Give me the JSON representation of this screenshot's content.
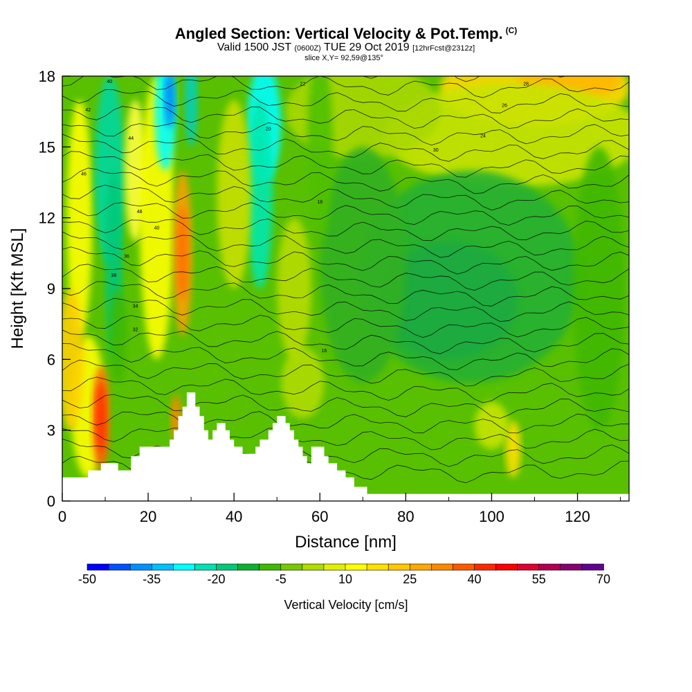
{
  "header": {
    "title": "Angled Section: Vertical Velocity & Pot.Temp.",
    "title_units": "(C)",
    "valid_prefix": "Valid 1500 JST",
    "valid_utc": "(0600Z)",
    "valid_date": "TUE 29 Oct 2019",
    "forecast": "[12hrFcst@2312z]",
    "slice": "slice X,Y= 92,59@135°"
  },
  "chart_data": {
    "type": "heatmap",
    "xlabel": "Distance [nm]",
    "ylabel": "Height [Kft MSL]",
    "xlim": [
      0,
      132
    ],
    "ylim": [
      0,
      18
    ],
    "x_ticks": [
      0,
      20,
      40,
      60,
      80,
      100,
      120
    ],
    "y_ticks": [
      0,
      3,
      6,
      9,
      12,
      15,
      18
    ],
    "colorbar": {
      "label": "Vertical Velocity [cm/s]",
      "tick_labels": [
        "-50",
        "-35",
        "-20",
        "-5",
        "10",
        "25",
        "40",
        "55",
        "70"
      ],
      "colors": [
        "#0000ff",
        "#0050ff",
        "#0090ff",
        "#00c0ff",
        "#00ffff",
        "#00e0b0",
        "#00c878",
        "#10b030",
        "#40b800",
        "#78c800",
        "#b0dc00",
        "#e0f000",
        "#ffff00",
        "#ffe000",
        "#ffc800",
        "#ffa800",
        "#ff8800",
        "#ff5a00",
        "#ff2800",
        "#ff0000",
        "#dd0030",
        "#b00050",
        "#880070",
        "#600090"
      ]
    },
    "terrain_profile": [
      [
        0,
        1.0
      ],
      [
        6,
        1.0
      ],
      [
        6,
        1.3
      ],
      [
        9,
        1.3
      ],
      [
        9,
        1.6
      ],
      [
        13,
        1.6
      ],
      [
        13,
        1.3
      ],
      [
        16,
        1.3
      ],
      [
        16,
        1.9
      ],
      [
        18,
        1.9
      ],
      [
        18,
        2.3
      ],
      [
        25,
        2.3
      ],
      [
        25,
        2.6
      ],
      [
        26,
        2.6
      ],
      [
        26,
        3.0
      ],
      [
        27,
        3.0
      ],
      [
        27,
        3.6
      ],
      [
        28,
        3.6
      ],
      [
        28,
        4.0
      ],
      [
        29,
        4.0
      ],
      [
        29,
        4.6
      ],
      [
        31,
        4.6
      ],
      [
        31,
        4.0
      ],
      [
        32,
        4.0
      ],
      [
        32,
        3.6
      ],
      [
        33,
        3.6
      ],
      [
        33,
        3.0
      ],
      [
        34,
        3.0
      ],
      [
        34,
        2.6
      ],
      [
        35,
        2.6
      ],
      [
        35,
        3.0
      ],
      [
        36,
        3.0
      ],
      [
        36,
        3.3
      ],
      [
        38,
        3.3
      ],
      [
        38,
        3.0
      ],
      [
        39,
        3.0
      ],
      [
        39,
        2.6
      ],
      [
        40,
        2.6
      ],
      [
        40,
        2.3
      ],
      [
        42,
        2.3
      ],
      [
        42,
        2.0
      ],
      [
        45,
        2.0
      ],
      [
        45,
        2.3
      ],
      [
        46,
        2.3
      ],
      [
        46,
        2.6
      ],
      [
        48,
        2.6
      ],
      [
        48,
        3.0
      ],
      [
        49,
        3.0
      ],
      [
        49,
        3.3
      ],
      [
        50,
        3.3
      ],
      [
        50,
        3.6
      ],
      [
        52,
        3.6
      ],
      [
        52,
        3.3
      ],
      [
        53,
        3.3
      ],
      [
        53,
        3.0
      ],
      [
        54,
        3.0
      ],
      [
        54,
        2.6
      ],
      [
        55,
        2.6
      ],
      [
        55,
        2.3
      ],
      [
        56,
        2.3
      ],
      [
        56,
        1.9
      ],
      [
        57,
        1.9
      ],
      [
        57,
        1.6
      ],
      [
        58,
        1.6
      ],
      [
        58,
        2.3
      ],
      [
        61,
        2.3
      ],
      [
        61,
        1.9
      ],
      [
        62,
        1.9
      ],
      [
        62,
        1.6
      ],
      [
        64,
        1.6
      ],
      [
        64,
        1.3
      ],
      [
        66,
        1.3
      ],
      [
        66,
        1.0
      ],
      [
        68,
        1.0
      ],
      [
        68,
        0.6
      ],
      [
        71,
        0.6
      ],
      [
        71,
        0.3
      ],
      [
        132,
        0.3
      ]
    ],
    "isentrope_labels": [
      "40",
      "42",
      "44",
      "46",
      "48",
      "40",
      "36",
      "38",
      "34",
      "32",
      "30",
      "28",
      "26",
      "24",
      "22",
      "20",
      "18",
      "16"
    ]
  }
}
